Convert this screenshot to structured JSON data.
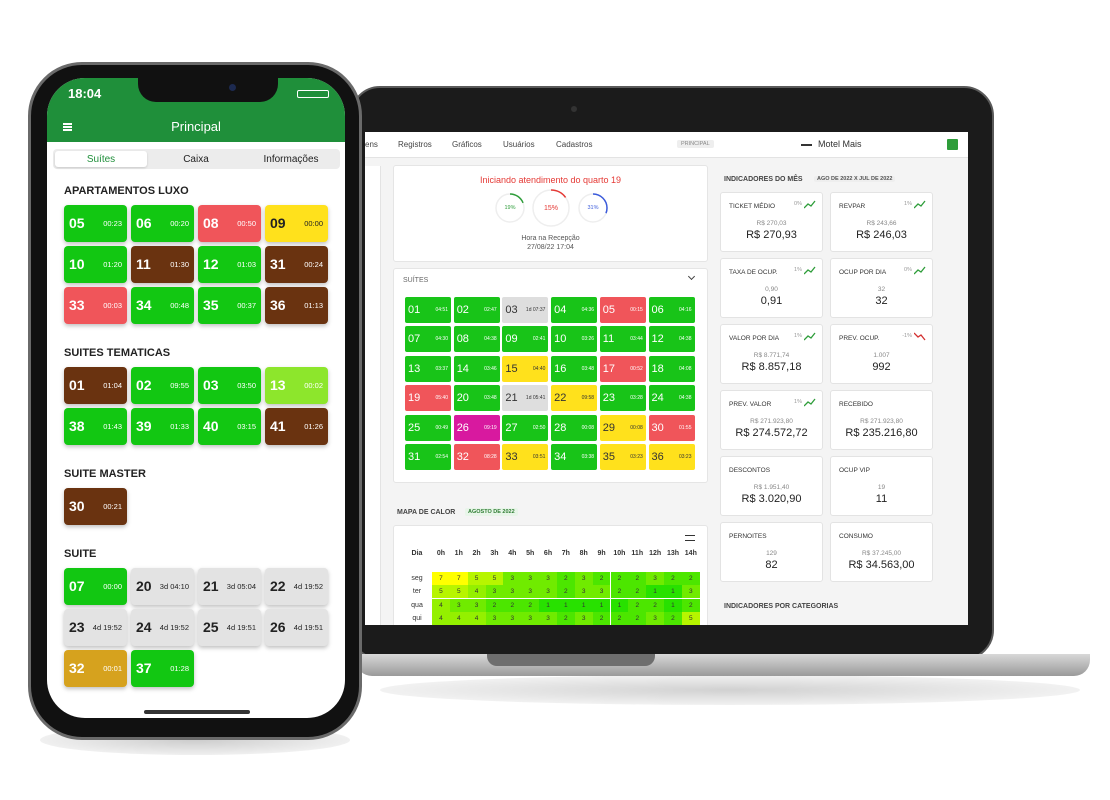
{
  "phone": {
    "time": "18:04",
    "title": "Principal",
    "tabs": [
      "Suítes",
      "Caixa",
      "Informações"
    ],
    "sections": [
      {
        "title": "APARTAMENTOS LUXO",
        "rooms": [
          {
            "n": "05",
            "t": "00:23",
            "color": "#12c712"
          },
          {
            "n": "06",
            "t": "00:20",
            "color": "#12c712"
          },
          {
            "n": "08",
            "t": "00:50",
            "color": "#f0555a"
          },
          {
            "n": "09",
            "t": "00:00",
            "color": "#ffe11c"
          },
          {
            "n": "10",
            "t": "01:20",
            "color": "#12c712"
          },
          {
            "n": "11",
            "t": "01:30",
            "color": "#6a3310"
          },
          {
            "n": "12",
            "t": "01:03",
            "color": "#12c712"
          },
          {
            "n": "31",
            "t": "00:24",
            "color": "#6a3310"
          },
          {
            "n": "33",
            "t": "00:03",
            "color": "#f0555a"
          },
          {
            "n": "34",
            "t": "00:48",
            "color": "#12c712"
          },
          {
            "n": "35",
            "t": "00:37",
            "color": "#12c712"
          },
          {
            "n": "36",
            "t": "01:13",
            "color": "#6a3310"
          }
        ]
      },
      {
        "title": "SUITES TEMATICAS",
        "rooms": [
          {
            "n": "01",
            "t": "01:04",
            "color": "#6a3310"
          },
          {
            "n": "02",
            "t": "09:55",
            "color": "#12c712"
          },
          {
            "n": "03",
            "t": "03:50",
            "color": "#12c712"
          },
          {
            "n": "13",
            "t": "00:02",
            "color": "#8de62c"
          },
          {
            "n": "38",
            "t": "01:43",
            "color": "#12c712"
          },
          {
            "n": "39",
            "t": "01:33",
            "color": "#12c712"
          },
          {
            "n": "40",
            "t": "03:15",
            "color": "#12c712"
          },
          {
            "n": "41",
            "t": "01:26",
            "color": "#6a3310"
          }
        ]
      },
      {
        "title": "SUITE MASTER",
        "rooms": [
          {
            "n": "30",
            "t": "00:21",
            "color": "#6a3310"
          }
        ]
      },
      {
        "title": "SUITE",
        "rooms": [
          {
            "n": "07",
            "t": "00:00",
            "color": "#12c712"
          },
          {
            "n": "20",
            "t": "3d 04:10",
            "color": "#e3e3e3"
          },
          {
            "n": "21",
            "t": "3d 05:04",
            "color": "#e3e3e3"
          },
          {
            "n": "22",
            "t": "4d 19:52",
            "color": "#e3e3e3"
          },
          {
            "n": "23",
            "t": "4d 19:52",
            "color": "#e3e3e3"
          },
          {
            "n": "24",
            "t": "4d 19:52",
            "color": "#e3e3e3"
          },
          {
            "n": "25",
            "t": "4d 19:51",
            "color": "#e3e3e3"
          },
          {
            "n": "26",
            "t": "4d 19:51",
            "color": "#e3e3e3"
          },
          {
            "n": "32",
            "t": "00:01",
            "color": "#d6a21e"
          },
          {
            "n": "37",
            "t": "01:28",
            "color": "#12c712"
          }
        ]
      }
    ]
  },
  "laptop": {
    "nav": [
      "ens",
      "Registros",
      "Gráficos",
      "Usuários",
      "Cadastros"
    ],
    "badge": "PRINCIPAL",
    "brand": "Motel Mais",
    "alert": {
      "title": "Iniciando atendimento do quarto 19",
      "gauges": [
        {
          "value": 19,
          "label": "19%",
          "color": "#2e9d3a"
        },
        {
          "value": 15,
          "label": "15%",
          "color": "#e53935"
        },
        {
          "value": 31,
          "label": "31%",
          "color": "#3b5bdb"
        }
      ],
      "caption": "Hora na Recepção",
      "date": "27/08/22 17:04"
    },
    "suites_title": "SUÍTES",
    "suites": [
      {
        "n": "01",
        "t": "04:51",
        "color": "#18c418"
      },
      {
        "n": "02",
        "t": "02:47",
        "color": "#18c418"
      },
      {
        "n": "03",
        "t": "1d 07:37",
        "color": "#dedede"
      },
      {
        "n": "04",
        "t": "04:36",
        "color": "#18c418"
      },
      {
        "n": "05",
        "t": "00:15",
        "color": "#f0555a"
      },
      {
        "n": "06",
        "t": "04:16",
        "color": "#18c418"
      },
      {
        "n": "07",
        "t": "04:30",
        "color": "#18c418"
      },
      {
        "n": "08",
        "t": "04:38",
        "color": "#18c418"
      },
      {
        "n": "09",
        "t": "02:41",
        "color": "#18c418"
      },
      {
        "n": "10",
        "t": "03:26",
        "color": "#18c418"
      },
      {
        "n": "11",
        "t": "03:44",
        "color": "#18c418"
      },
      {
        "n": "12",
        "t": "04:38",
        "color": "#18c418"
      },
      {
        "n": "13",
        "t": "03:37",
        "color": "#18c418"
      },
      {
        "n": "14",
        "t": "03:46",
        "color": "#18c418"
      },
      {
        "n": "15",
        "t": "04:40",
        "color": "#ffe11c"
      },
      {
        "n": "16",
        "t": "03:48",
        "color": "#18c418"
      },
      {
        "n": "17",
        "t": "00:52",
        "color": "#f0555a"
      },
      {
        "n": "18",
        "t": "04:08",
        "color": "#18c418"
      },
      {
        "n": "19",
        "t": "05:40",
        "color": "#f0555a"
      },
      {
        "n": "20",
        "t": "03:48",
        "color": "#18c418"
      },
      {
        "n": "21",
        "t": "1d 05:41",
        "color": "#dedede"
      },
      {
        "n": "22",
        "t": "09:58",
        "color": "#ffe11c"
      },
      {
        "n": "23",
        "t": "03:28",
        "color": "#18c418"
      },
      {
        "n": "24",
        "t": "04:38",
        "color": "#18c418"
      },
      {
        "n": "25",
        "t": "00:49",
        "color": "#18c418"
      },
      {
        "n": "26",
        "t": "09:19",
        "color": "#d8199f"
      },
      {
        "n": "27",
        "t": "02:50",
        "color": "#18c418"
      },
      {
        "n": "28",
        "t": "00:08",
        "color": "#18c418"
      },
      {
        "n": "29",
        "t": "00:08",
        "color": "#ffe11c"
      },
      {
        "n": "30",
        "t": "01:55",
        "color": "#f0555a"
      },
      {
        "n": "31",
        "t": "02:54",
        "color": "#18c418"
      },
      {
        "n": "32",
        "t": "08:28",
        "color": "#f0555a"
      },
      {
        "n": "33",
        "t": "03:51",
        "color": "#ffe11c"
      },
      {
        "n": "34",
        "t": "03:38",
        "color": "#18c418"
      },
      {
        "n": "35",
        "t": "03:23",
        "color": "#ffe11c"
      },
      {
        "n": "36",
        "t": "03:23",
        "color": "#ffe11c"
      }
    ],
    "heatmap": {
      "title": "MAPA DE CALOR",
      "period": "AGOSTO DE 2022",
      "corner": "Dia",
      "hours": [
        "0h",
        "1h",
        "2h",
        "3h",
        "4h",
        "5h",
        "6h",
        "7h",
        "8h",
        "9h",
        "10h",
        "11h",
        "12h",
        "13h",
        "14h"
      ],
      "rows": [
        {
          "day": "seg",
          "values": [
            7,
            7,
            5,
            5,
            3,
            3,
            3,
            2,
            3,
            2,
            2,
            2,
            3,
            2,
            2
          ]
        },
        {
          "day": "ter",
          "values": [
            5,
            5,
            4,
            3,
            3,
            3,
            3,
            2,
            3,
            3,
            2,
            2,
            1,
            1,
            3
          ]
        },
        {
          "day": "qua",
          "values": [
            4,
            3,
            3,
            2,
            2,
            2,
            1,
            1,
            1,
            1,
            1,
            2,
            2,
            1,
            2
          ]
        },
        {
          "day": "qui",
          "values": [
            4,
            4,
            4,
            3,
            3,
            3,
            3,
            2,
            3,
            2,
            2,
            2,
            3,
            2,
            5
          ]
        }
      ]
    },
    "indicators": {
      "title": "INDICADORES DO MÊS",
      "period": "AGO DE 2022 X JUL DE 2022",
      "cards": [
        {
          "label": "TICKET MÉDIO",
          "trend": "0%",
          "previous": "R$ 270,03",
          "value": "R$ 270,93"
        },
        {
          "label": "REVPAR",
          "trend": "1%",
          "previous": "R$ 243,66",
          "value": "R$ 246,03"
        },
        {
          "label": "TAXA DE OCUP.",
          "trend": "1%",
          "previous": "0,90",
          "value": "0,91"
        },
        {
          "label": "OCUP POR DIA",
          "trend": "0%",
          "previous": "32",
          "value": "32"
        },
        {
          "label": "VALOR POR DIA",
          "trend": "1%",
          "previous": "R$ 8.771,74",
          "value": "R$ 8.857,18"
        },
        {
          "label": "PREV. OCUP.",
          "trend": "-1%",
          "previous": "1.007",
          "value": "992"
        },
        {
          "label": "PREV. VALOR",
          "trend": "1%",
          "previous": "R$ 271.923,80",
          "value": "R$ 274.572,72"
        },
        {
          "label": "RECEBIDO",
          "previous": "R$ 271.923,80",
          "value": "R$ 235.216,80"
        },
        {
          "label": "DESCONTOS",
          "previous": "R$ 1.951,40",
          "value": "R$ 3.020,90"
        },
        {
          "label": "OCUP VIP",
          "previous": "19",
          "value": "11"
        },
        {
          "label": "PERNOITES",
          "previous": "129",
          "value": "82"
        },
        {
          "label": "CONSUMO",
          "previous": "R$ 37.245,00",
          "value": "R$ 34.563,00"
        }
      ]
    },
    "categories_title": "INDICADORES POR CATEGORIAS"
  }
}
